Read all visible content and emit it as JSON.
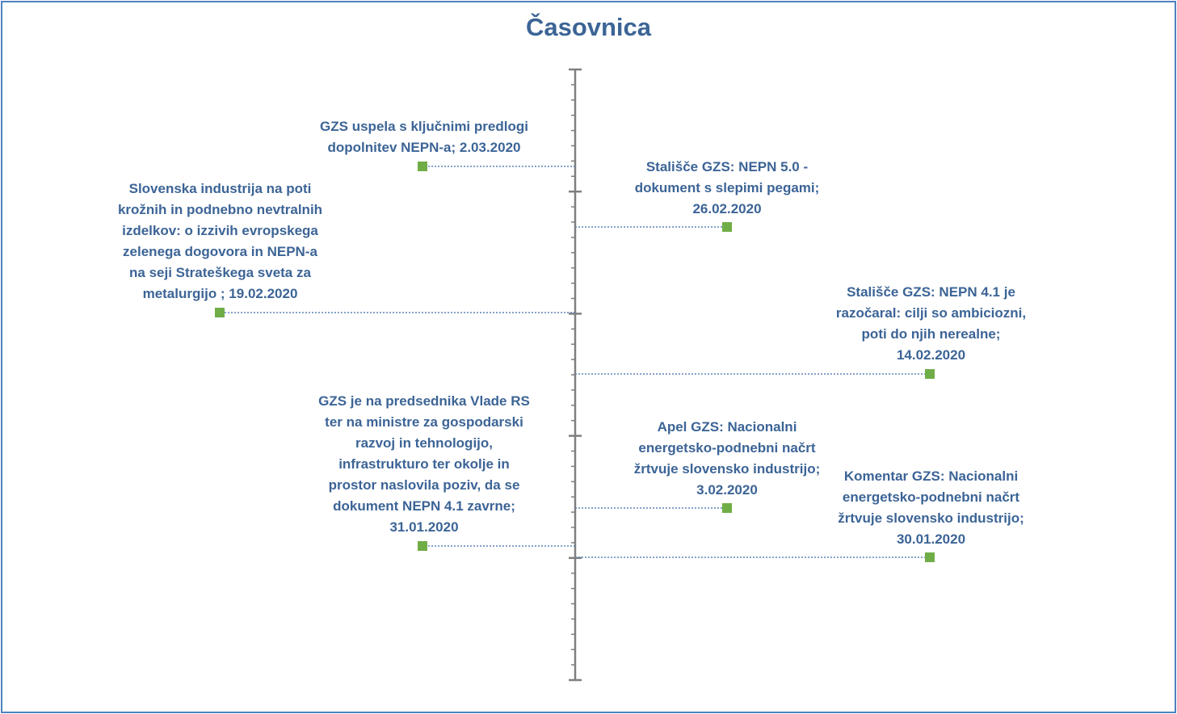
{
  "title": "Časovnica",
  "colors": {
    "axis": "#7f7f7f",
    "marker": "#70ad47",
    "connector": "#5b83b8",
    "text": "#3c6496",
    "border": "#4f81bd"
  },
  "events": [
    {
      "date": "2020-03-02",
      "side": "left",
      "text": "GZS uspela s ključnimi predlogi\ndopolnitev NEPN-a; 2.03.2020"
    },
    {
      "date": "2020-02-26",
      "side": "right",
      "text": "Stališče GZS: NEPN 5.0 -\ndokument s slepimi pegami;\n26.02.2020"
    },
    {
      "date": "2020-02-19",
      "side": "left",
      "text": "Slovenska industrija  na poti\nkrožnih in podnebno nevtralnih\nizdelkov: o izzivih evropskega\nzelenega dogovora in NEPN-a\nna seji Strateškega sveta za\nmetalurgijo  ; 19.02.2020"
    },
    {
      "date": "2020-02-14",
      "side": "right",
      "text": "Stališče GZS: NEPN 4.1 je\nrazočaral: cilji so ambiciozni,\npoti do njih nerealne;\n14.02.2020"
    },
    {
      "date": "2020-02-03",
      "side": "right",
      "text": "Apel GZS: Nacionalni\nenergetsko-podnebni  načrt\nžrtvuje slovensko industrijo;\n3.02.2020"
    },
    {
      "date": "2020-01-31",
      "side": "left",
      "text": "GZS je na predsednika Vlade RS\nter na ministre za gospodarski\nrazvoj in tehnologijo,\ninfrastrukturo  ter okolje in\nprostor naslovila poziv, da se\ndokument NEPN 4.1 zavrne;\n31.01.2020"
    },
    {
      "date": "2020-01-30",
      "side": "right",
      "text": "Komentar GZS: Nacionalni\nenergetsko-podnebni  načrt\nžrtvuje slovensko industrijo;\n30.01.2020"
    }
  ]
}
